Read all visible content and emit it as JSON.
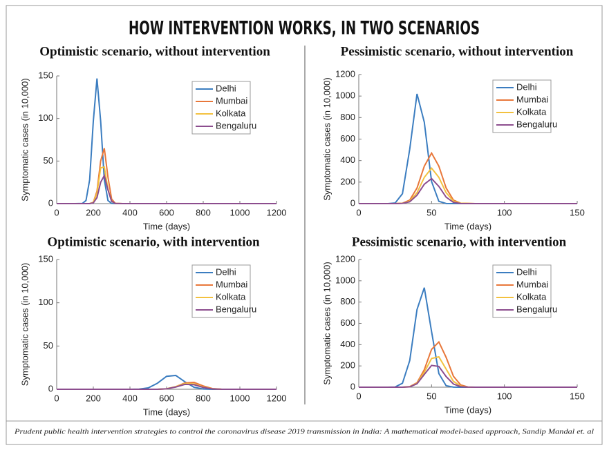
{
  "title": "HOW INTERVENTION WORKS, IN TWO SCENARIOS",
  "caption": "Prudent public health intervention strategies to control the coronavirus disease 2019 transmission in India: A mathematical model-based approach, Sandip Mandal et. al",
  "chart_data": [
    {
      "type": "line",
      "title": "Optimistic scenario, without intervention",
      "x_label": "Time (days)",
      "y_label": "Symptomatic cases (in 10,000)",
      "x": [
        0,
        100,
        140,
        160,
        180,
        200,
        220,
        240,
        260,
        280,
        300,
        320,
        360,
        400,
        600,
        800,
        1000,
        1200
      ],
      "series": [
        {
          "name": "Delhi",
          "color": "#3b7dc0",
          "values": [
            0,
            0,
            0.2,
            3.6,
            28,
            97,
            147,
            97,
            28,
            3.6,
            0.2,
            0,
            0,
            0,
            0,
            0,
            0,
            0
          ]
        },
        {
          "name": "Mumbai",
          "color": "#e8773a",
          "values": [
            0,
            0,
            0,
            0,
            0,
            1.5,
            14.5,
            50,
            65,
            31,
            5.3,
            0.3,
            0,
            0,
            0,
            0,
            0,
            0
          ]
        },
        {
          "name": "Kolkata",
          "color": "#f3c13f",
          "values": [
            0,
            0,
            0,
            0,
            0,
            1.5,
            12,
            42,
            43,
            17,
            2.5,
            0.2,
            0,
            0,
            0,
            0,
            0,
            0
          ]
        },
        {
          "name": "Bengaluru",
          "color": "#8c4d8e",
          "values": [
            0,
            0,
            0,
            0,
            0,
            0.8,
            7,
            25,
            33,
            16,
            2.7,
            0.2,
            0,
            0,
            0,
            0,
            0,
            0
          ]
        }
      ],
      "xlim": [
        0,
        1200
      ],
      "xticks": [
        0,
        200,
        400,
        600,
        800,
        1000,
        1200
      ],
      "ylim": [
        0,
        150
      ],
      "yticks": [
        0,
        50,
        100,
        150
      ],
      "legend": "upper right",
      "grid": false
    },
    {
      "type": "line",
      "title": "Pessimistic scenario, without intervention",
      "x_label": "Time (days)",
      "y_label": "Symptomatic cases (in 10,000)",
      "x": [
        0,
        20,
        25,
        30,
        35,
        40,
        45,
        50,
        55,
        60,
        65,
        70,
        80,
        100,
        150
      ],
      "series": [
        {
          "name": "Delhi",
          "color": "#3b7dc0",
          "values": [
            0,
            0,
            6,
            92,
            506,
            1020,
            757,
            205,
            21,
            1,
            0,
            0,
            0,
            0,
            0
          ]
        },
        {
          "name": "Mumbai",
          "color": "#e8773a",
          "values": [
            0,
            0,
            0,
            4,
            33,
            145,
            348,
            470,
            348,
            145,
            33,
            4,
            0,
            0,
            0
          ]
        },
        {
          "name": "Kolkata",
          "color": "#f3c13f",
          "values": [
            0,
            0,
            0,
            3,
            23,
            101,
            244,
            330,
            244,
            101,
            23,
            3,
            0,
            0,
            0
          ]
        },
        {
          "name": "Bengaluru",
          "color": "#8c4d8e",
          "values": [
            0,
            0,
            0,
            2,
            17,
            78,
            180,
            233,
            160,
            60,
            12,
            1,
            0,
            0,
            0
          ]
        }
      ],
      "xlim": [
        0,
        150
      ],
      "xticks": [
        0,
        50,
        100,
        150
      ],
      "ylim": [
        0,
        1200
      ],
      "yticks": [
        0,
        200,
        400,
        600,
        800,
        1000,
        1200
      ],
      "legend": "upper right",
      "grid": false
    },
    {
      "type": "line",
      "title": "Optimistic scenario, with intervention",
      "x_label": "Time (days)",
      "y_label": "Symptomatic cases (in 10,000)",
      "x": [
        0,
        200,
        400,
        450,
        500,
        550,
        600,
        650,
        700,
        750,
        800,
        850,
        900,
        1000,
        1200
      ],
      "series": [
        {
          "name": "Delhi",
          "color": "#3b7dc0",
          "values": [
            0,
            0,
            0,
            0.2,
            1.6,
            7,
            15,
            16,
            8.6,
            2.3,
            0.3,
            0,
            0,
            0,
            0
          ]
        },
        {
          "name": "Mumbai",
          "color": "#e8773a",
          "values": [
            0,
            0,
            0,
            0,
            0,
            0,
            0.5,
            3,
            7.3,
            8,
            3.8,
            0.8,
            0.1,
            0,
            0
          ]
        },
        {
          "name": "Kolkata",
          "color": "#f3c13f",
          "values": [
            0,
            0,
            0,
            0,
            0,
            0,
            0.6,
            3,
            6.6,
            6.2,
            2.5,
            0.5,
            0,
            0,
            0
          ]
        },
        {
          "name": "Bengaluru",
          "color": "#8c4d8e",
          "values": [
            0,
            0,
            0,
            0,
            0,
            0,
            0.5,
            2.6,
            5.7,
            5.3,
            2.1,
            0.4,
            0,
            0,
            0
          ]
        }
      ],
      "xlim": [
        0,
        1200
      ],
      "xticks": [
        0,
        200,
        400,
        600,
        800,
        1000,
        1200
      ],
      "ylim": [
        0,
        150
      ],
      "yticks": [
        0,
        50,
        100,
        150
      ],
      "legend": "upper right",
      "grid": false
    },
    {
      "type": "line",
      "title": "Pessimistic scenario, with intervention",
      "x_label": "Time (days)",
      "y_label": "Symptomatic cases (in 10,000)",
      "x": [
        0,
        20,
        25,
        30,
        35,
        40,
        45,
        50,
        55,
        60,
        65,
        70,
        75,
        80,
        100,
        150
      ],
      "series": [
        {
          "name": "Delhi",
          "color": "#3b7dc0",
          "values": [
            0,
            0,
            2,
            37,
            250,
            730,
            935,
            522,
            128,
            14,
            1,
            0,
            0,
            0,
            0,
            0
          ]
        },
        {
          "name": "Mumbai",
          "color": "#e8773a",
          "values": [
            0,
            0,
            0,
            0,
            6,
            42,
            165,
            356,
            425,
            280,
            103,
            21,
            2,
            0,
            0,
            0
          ]
        },
        {
          "name": "Kolkata",
          "color": "#f3c13f",
          "values": [
            0,
            0,
            0,
            0,
            4,
            36,
            140,
            270,
            285,
            170,
            55,
            10,
            1,
            0,
            0,
            0
          ]
        },
        {
          "name": "Bengaluru",
          "color": "#8c4d8e",
          "values": [
            0,
            0,
            0,
            0,
            3,
            32,
            120,
            205,
            195,
            100,
            30,
            5,
            0.5,
            0,
            0,
            0
          ]
        }
      ],
      "xlim": [
        0,
        150
      ],
      "xticks": [
        0,
        50,
        100,
        150
      ],
      "ylim": [
        0,
        1200
      ],
      "yticks": [
        0,
        200,
        400,
        600,
        800,
        1000,
        1200
      ],
      "legend": "upper right",
      "grid": false
    }
  ]
}
